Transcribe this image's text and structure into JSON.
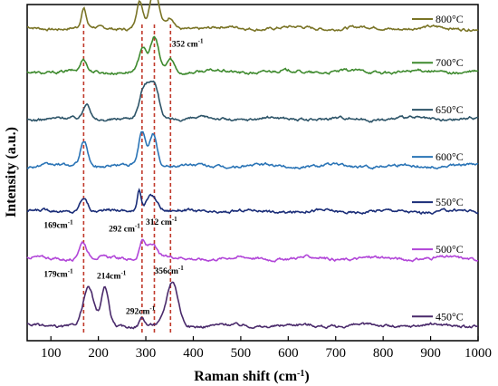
{
  "chart_data": {
    "type": "line",
    "xlabel": "Raman shift (cm",
    "xlabel_sup": "-1",
    "xlabel_end": ")",
    "ylabel": "Intensity (a.u.)",
    "xlim": [
      50,
      1000
    ],
    "xticks": [
      100,
      200,
      300,
      400,
      500,
      600,
      700,
      800,
      900,
      1000
    ],
    "y_ticks_shown": false,
    "stacked_offset": true,
    "series": [
      {
        "name": "800°C",
        "color": "#7a7426",
        "baseline": 0.93,
        "peaks": [
          [
            169,
            0.055,
            5
          ],
          [
            287,
            0.08,
            7
          ],
          [
            318,
            0.12,
            9
          ],
          [
            352,
            0.03,
            8
          ]
        ]
      },
      {
        "name": "700°C",
        "color": "#3e8a2e",
        "baseline": 0.8,
        "peaks": [
          [
            169,
            0.035,
            6
          ],
          [
            293,
            0.07,
            7
          ],
          [
            318,
            0.1,
            9
          ],
          [
            352,
            0.04,
            8
          ]
        ]
      },
      {
        "name": "650°C",
        "color": "#2d5468",
        "baseline": 0.66,
        "peaks": [
          [
            176,
            0.05,
            7
          ],
          [
            295,
            0.075,
            9
          ],
          [
            316,
            0.11,
            11
          ]
        ]
      },
      {
        "name": "600°C",
        "color": "#2a74b6",
        "baseline": 0.52,
        "peaks": [
          [
            170,
            0.075,
            8
          ],
          [
            292,
            0.1,
            7
          ],
          [
            315,
            0.1,
            8
          ]
        ]
      },
      {
        "name": "550°C",
        "color": "#1a2d78",
        "baseline": 0.385,
        "peaks": [
          [
            169,
            0.045,
            8
          ],
          [
            286,
            0.065,
            4
          ],
          [
            312,
            0.05,
            12
          ]
        ]
      },
      {
        "name": "500°C",
        "color": "#b145d8",
        "baseline": 0.245,
        "peaks": [
          [
            167,
            0.05,
            8
          ],
          [
            292,
            0.05,
            6
          ],
          [
            312,
            0.045,
            10
          ]
        ]
      },
      {
        "name": "450°C",
        "color": "#4a2a6b",
        "baseline": 0.045,
        "peaks": [
          [
            179,
            0.11,
            11
          ],
          [
            214,
            0.11,
            8
          ],
          [
            292,
            0.025,
            5
          ],
          [
            356,
            0.13,
            12
          ]
        ]
      }
    ],
    "reference_lines": [
      169,
      292,
      318,
      352
    ],
    "reference_line_color": "#c0392b",
    "annotations": [
      {
        "text": "352 cm",
        "sup": "-1",
        "x": 355,
        "y": 0.875
      },
      {
        "text": "169cm",
        "sup": "-1",
        "x": 85,
        "y": 0.335
      },
      {
        "text": "292 cm",
        "sup": "-1",
        "x": 222,
        "y": 0.325
      },
      {
        "text": "312 cm",
        "sup": "-1",
        "x": 300,
        "y": 0.345
      },
      {
        "text": "179cm",
        "sup": "-1",
        "x": 85,
        "y": 0.19
      },
      {
        "text": "214cm",
        "sup": "-1",
        "x": 197,
        "y": 0.185
      },
      {
        "text": "356cm",
        "sup": "-1",
        "x": 318,
        "y": 0.2
      },
      {
        "text": "292cm",
        "sup": "-1",
        "x": 258,
        "y": 0.08
      }
    ]
  }
}
